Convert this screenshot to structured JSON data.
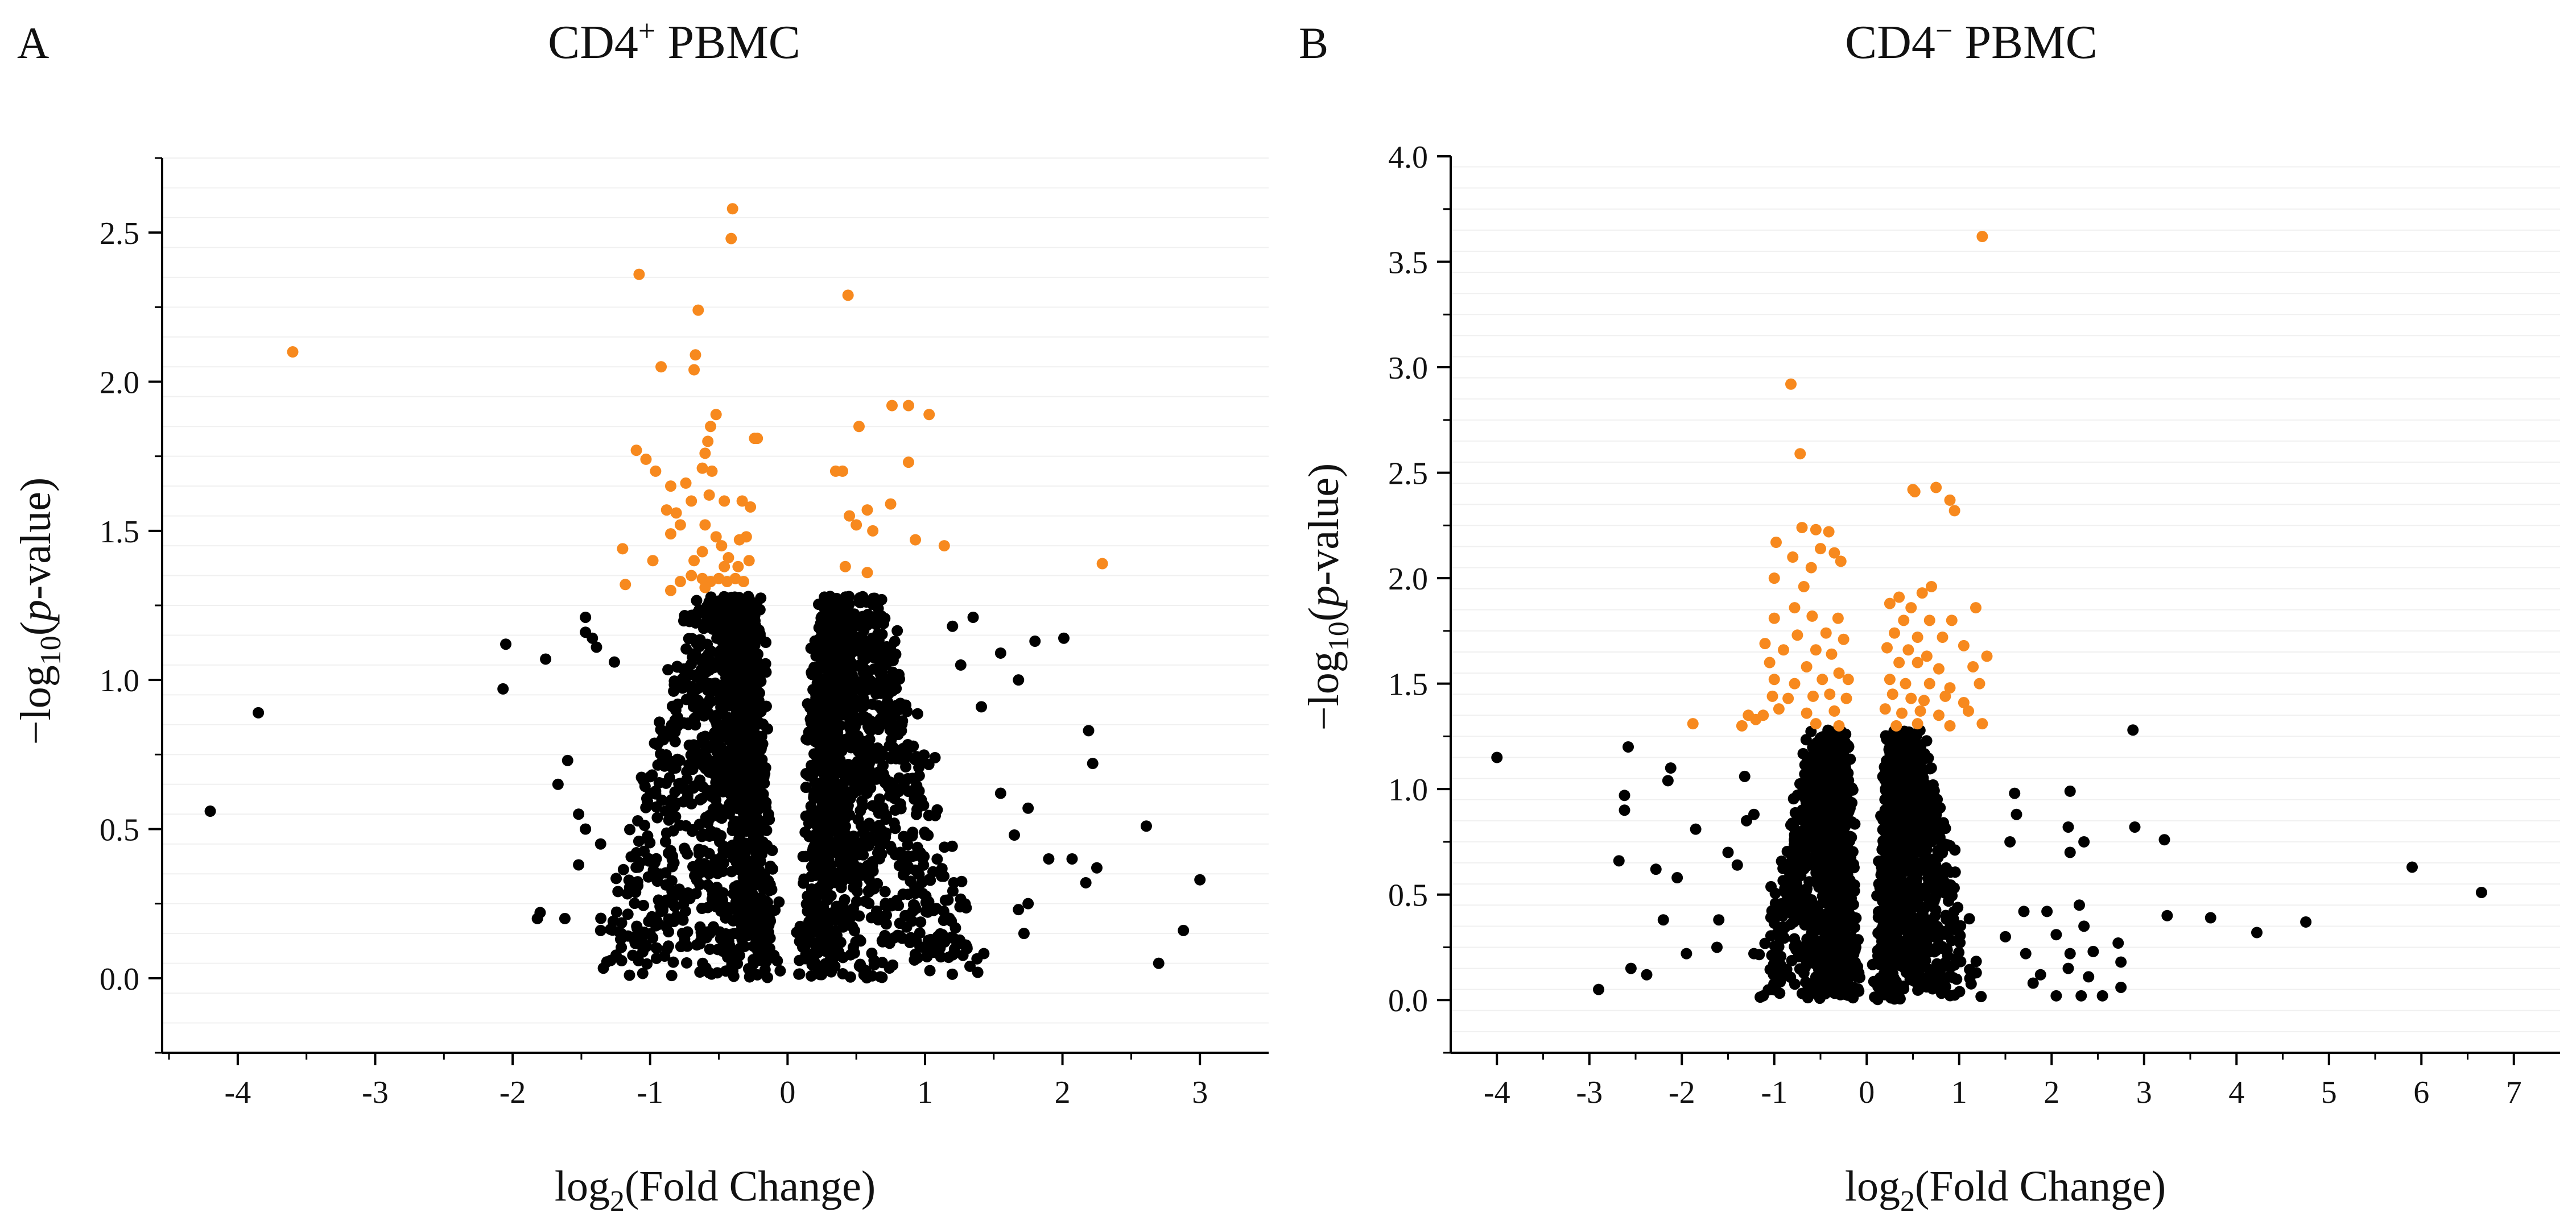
{
  "chart_data": [
    {
      "type": "scatter",
      "panel_letter": "A",
      "title_main": "CD4",
      "title_sup": "+",
      "title_tail": " PBMC",
      "xlabel_pre": "log",
      "xlabel_sub": "2",
      "xlabel_post": "(Fold Change)",
      "ylabel_pre": "−log",
      "ylabel_sub": "10",
      "ylabel_open": "(",
      "ylabel_ital": "p",
      "ylabel_post": "-value)",
      "xlim": [
        -4.55,
        3.5
      ],
      "ylim": [
        -0.25,
        2.75
      ],
      "xticks": [
        -4,
        -3,
        -2,
        -1,
        0,
        1,
        2,
        3
      ],
      "yticks": [
        0.0,
        0.5,
        1.0,
        1.5,
        2.0,
        2.5
      ],
      "ytick_labels": [
        "0.0",
        "0.5",
        "1.0",
        "1.5",
        "2.0",
        "2.5"
      ],
      "grid": false,
      "threshold_y": 1.3,
      "colors": {
        "significant": "#f7891e",
        "non_significant": "#000000"
      },
      "significant_points": [
        [
          -3.6,
          2.1
        ],
        [
          -0.4,
          2.58
        ],
        [
          -0.41,
          2.48
        ],
        [
          -1.08,
          2.36
        ],
        [
          0.44,
          2.29
        ],
        [
          -0.65,
          2.24
        ],
        [
          -0.67,
          2.09
        ],
        [
          -0.68,
          2.04
        ],
        [
          -0.92,
          2.05
        ],
        [
          0.76,
          1.92
        ],
        [
          0.88,
          1.92
        ],
        [
          1.03,
          1.89
        ],
        [
          -0.52,
          1.89
        ],
        [
          -0.56,
          1.85
        ],
        [
          -0.58,
          1.8
        ],
        [
          -0.6,
          1.76
        ],
        [
          -0.24,
          1.81
        ],
        [
          -0.22,
          1.81
        ],
        [
          0.52,
          1.85
        ],
        [
          -1.1,
          1.77
        ],
        [
          -1.03,
          1.74
        ],
        [
          -0.96,
          1.7
        ],
        [
          -0.62,
          1.71
        ],
        [
          -0.55,
          1.7
        ],
        [
          0.35,
          1.7
        ],
        [
          0.4,
          1.7
        ],
        [
          0.88,
          1.73
        ],
        [
          -0.85,
          1.65
        ],
        [
          -0.74,
          1.66
        ],
        [
          -0.57,
          1.62
        ],
        [
          -0.7,
          1.6
        ],
        [
          -0.46,
          1.6
        ],
        [
          -0.88,
          1.57
        ],
        [
          -0.81,
          1.56
        ],
        [
          -0.33,
          1.6
        ],
        [
          -0.27,
          1.58
        ],
        [
          0.75,
          1.59
        ],
        [
          0.58,
          1.57
        ],
        [
          -1.2,
          1.44
        ],
        [
          -0.85,
          1.49
        ],
        [
          -0.78,
          1.52
        ],
        [
          -0.6,
          1.52
        ],
        [
          -0.52,
          1.48
        ],
        [
          -0.48,
          1.45
        ],
        [
          -0.62,
          1.43
        ],
        [
          -0.35,
          1.47
        ],
        [
          -0.3,
          1.48
        ],
        [
          0.45,
          1.55
        ],
        [
          0.5,
          1.52
        ],
        [
          0.62,
          1.5
        ],
        [
          0.93,
          1.47
        ],
        [
          1.14,
          1.45
        ],
        [
          -0.98,
          1.4
        ],
        [
          -0.68,
          1.4
        ],
        [
          -0.43,
          1.41
        ],
        [
          -0.28,
          1.4
        ],
        [
          -0.7,
          1.35
        ],
        [
          -0.62,
          1.34
        ],
        [
          -0.56,
          1.33
        ],
        [
          -0.5,
          1.34
        ],
        [
          -0.44,
          1.33
        ],
        [
          -0.38,
          1.34
        ],
        [
          -0.32,
          1.33
        ],
        [
          -0.46,
          1.38
        ],
        [
          -0.36,
          1.38
        ],
        [
          -0.78,
          1.33
        ],
        [
          -1.18,
          1.32
        ],
        [
          0.42,
          1.38
        ],
        [
          0.58,
          1.36
        ],
        [
          2.29,
          1.39
        ],
        [
          -0.6,
          1.31
        ],
        [
          -0.85,
          1.3
        ]
      ],
      "outlier_points": [
        [
          -4.2,
          0.56
        ],
        [
          -3.85,
          0.89
        ],
        [
          -2.05,
          1.12
        ],
        [
          -2.07,
          0.97
        ],
        [
          -1.76,
          1.07
        ],
        [
          -1.6,
          0.73
        ],
        [
          -1.67,
          0.65
        ],
        [
          -1.52,
          0.55
        ],
        [
          -1.47,
          0.5
        ],
        [
          -1.52,
          0.38
        ],
        [
          -1.36,
          0.45
        ],
        [
          -1.8,
          0.22
        ],
        [
          -1.82,
          0.2
        ],
        [
          -1.62,
          0.2
        ],
        [
          -1.36,
          0.16
        ],
        [
          -1.15,
          0.01
        ],
        [
          -1.47,
          1.21
        ],
        [
          -1.47,
          1.16
        ],
        [
          -1.39,
          1.11
        ],
        [
          -1.26,
          1.06
        ],
        [
          -1.42,
          1.14
        ],
        [
          1.35,
          1.21
        ],
        [
          1.55,
          1.09
        ],
        [
          1.8,
          1.13
        ],
        [
          2.01,
          1.14
        ],
        [
          1.68,
          1.0
        ],
        [
          2.19,
          0.83
        ],
        [
          2.22,
          0.72
        ],
        [
          2.61,
          0.51
        ],
        [
          2.25,
          0.37
        ],
        [
          2.17,
          0.32
        ],
        [
          3.0,
          0.33
        ],
        [
          2.88,
          0.16
        ],
        [
          2.7,
          0.05
        ],
        [
          1.9,
          0.4
        ],
        [
          2.07,
          0.4
        ],
        [
          1.68,
          0.23
        ],
        [
          1.75,
          0.25
        ],
        [
          1.75,
          0.57
        ],
        [
          1.55,
          0.62
        ],
        [
          1.65,
          0.48
        ],
        [
          1.72,
          0.15
        ],
        [
          1.2,
          1.18
        ],
        [
          1.26,
          1.05
        ],
        [
          1.41,
          0.91
        ]
      ]
    },
    {
      "type": "scatter",
      "panel_letter": "B",
      "title_main": "CD4",
      "title_sup": "−",
      "title_tail": " PBMC",
      "xlabel_pre": "log",
      "xlabel_sub": "2",
      "xlabel_post": "(Fold Change)",
      "ylabel_pre": "−log",
      "ylabel_sub": "10",
      "ylabel_open": "(",
      "ylabel_ital": "p",
      "ylabel_post": "-value)",
      "xlim": [
        -4.5,
        7.5
      ],
      "ylim": [
        -0.25,
        4.0
      ],
      "xticks": [
        -4,
        -3,
        -2,
        -1,
        0,
        1,
        2,
        3,
        4,
        5,
        6,
        7
      ],
      "yticks": [
        0.0,
        0.5,
        1.0,
        1.5,
        2.0,
        2.5,
        3.0,
        3.5,
        4.0
      ],
      "ytick_labels": [
        "0.0",
        "0.5",
        "1.0",
        "1.5",
        "2.0",
        "2.5",
        "3.0",
        "3.5",
        "4.0"
      ],
      "grid": false,
      "threshold_y": 1.3,
      "colors": {
        "significant": "#f7891e",
        "non_significant": "#000000"
      },
      "significant_points": [
        [
          1.25,
          3.62
        ],
        [
          -0.82,
          2.92
        ],
        [
          -0.72,
          2.59
        ],
        [
          0.75,
          2.43
        ],
        [
          0.5,
          2.42
        ],
        [
          0.52,
          2.41
        ],
        [
          0.9,
          2.37
        ],
        [
          0.95,
          2.32
        ],
        [
          -0.7,
          2.24
        ],
        [
          -0.55,
          2.23
        ],
        [
          -0.41,
          2.22
        ],
        [
          -0.98,
          2.17
        ],
        [
          -0.5,
          2.14
        ],
        [
          -0.8,
          2.1
        ],
        [
          -0.35,
          2.12
        ],
        [
          -0.6,
          2.05
        ],
        [
          -0.28,
          2.08
        ],
        [
          -1.0,
          2.0
        ],
        [
          -0.68,
          1.96
        ],
        [
          0.7,
          1.96
        ],
        [
          0.6,
          1.93
        ],
        [
          0.35,
          1.91
        ],
        [
          0.25,
          1.88
        ],
        [
          0.48,
          1.86
        ],
        [
          1.18,
          1.86
        ],
        [
          -1.0,
          1.81
        ],
        [
          -0.78,
          1.86
        ],
        [
          -0.59,
          1.82
        ],
        [
          -0.31,
          1.81
        ],
        [
          0.68,
          1.8
        ],
        [
          0.4,
          1.8
        ],
        [
          0.92,
          1.8
        ],
        [
          -0.75,
          1.73
        ],
        [
          -0.25,
          1.71
        ],
        [
          -0.44,
          1.74
        ],
        [
          0.3,
          1.74
        ],
        [
          0.55,
          1.72
        ],
        [
          0.82,
          1.72
        ],
        [
          1.05,
          1.68
        ],
        [
          -1.1,
          1.69
        ],
        [
          -0.9,
          1.66
        ],
        [
          -0.55,
          1.66
        ],
        [
          -0.38,
          1.64
        ],
        [
          0.22,
          1.67
        ],
        [
          0.45,
          1.66
        ],
        [
          0.65,
          1.63
        ],
        [
          1.3,
          1.63
        ],
        [
          -1.05,
          1.6
        ],
        [
          -0.65,
          1.58
        ],
        [
          -0.3,
          1.55
        ],
        [
          0.35,
          1.6
        ],
        [
          0.55,
          1.6
        ],
        [
          0.78,
          1.57
        ],
        [
          1.15,
          1.58
        ],
        [
          -1.0,
          1.52
        ],
        [
          -0.78,
          1.5
        ],
        [
          -0.48,
          1.52
        ],
        [
          -0.2,
          1.52
        ],
        [
          0.25,
          1.52
        ],
        [
          0.42,
          1.5
        ],
        [
          0.68,
          1.5
        ],
        [
          0.9,
          1.48
        ],
        [
          1.22,
          1.5
        ],
        [
          -1.02,
          1.44
        ],
        [
          -0.85,
          1.43
        ],
        [
          -0.58,
          1.44
        ],
        [
          -0.4,
          1.45
        ],
        [
          -0.22,
          1.43
        ],
        [
          0.28,
          1.45
        ],
        [
          0.48,
          1.43
        ],
        [
          0.62,
          1.42
        ],
        [
          0.85,
          1.44
        ],
        [
          1.05,
          1.41
        ],
        [
          -0.95,
          1.38
        ],
        [
          -0.65,
          1.36
        ],
        [
          -0.35,
          1.37
        ],
        [
          0.2,
          1.38
        ],
        [
          0.38,
          1.36
        ],
        [
          0.58,
          1.37
        ],
        [
          0.78,
          1.35
        ],
        [
          1.1,
          1.37
        ],
        [
          -1.35,
          1.3
        ],
        [
          -1.2,
          1.33
        ],
        [
          -1.12,
          1.35
        ],
        [
          -1.28,
          1.35
        ],
        [
          -1.88,
          1.31
        ],
        [
          -0.55,
          1.31
        ],
        [
          -0.3,
          1.3
        ],
        [
          0.32,
          1.3
        ],
        [
          0.55,
          1.31
        ],
        [
          0.9,
          1.3
        ],
        [
          1.25,
          1.31
        ]
      ],
      "outlier_points": [
        [
          -4.0,
          1.15
        ],
        [
          -2.9,
          0.05
        ],
        [
          -2.68,
          0.66
        ],
        [
          -2.58,
          1.2
        ],
        [
          -2.62,
          0.97
        ],
        [
          -2.62,
          0.9
        ],
        [
          -2.55,
          0.15
        ],
        [
          -2.38,
          0.12
        ],
        [
          -2.12,
          1.1
        ],
        [
          -2.28,
          0.62
        ],
        [
          -2.2,
          0.38
        ],
        [
          -2.05,
          0.58
        ],
        [
          -1.95,
          0.22
        ],
        [
          -1.85,
          0.81
        ],
        [
          -2.15,
          1.04
        ],
        [
          -1.6,
          0.38
        ],
        [
          -1.5,
          0.7
        ],
        [
          -1.4,
          0.64
        ],
        [
          -1.3,
          0.85
        ],
        [
          -1.22,
          0.88
        ],
        [
          -1.22,
          0.22
        ],
        [
          -1.12,
          0.02
        ],
        [
          -1.32,
          1.06
        ],
        [
          -1.62,
          0.25
        ],
        [
          2.88,
          1.28
        ],
        [
          2.9,
          0.82
        ],
        [
          3.22,
          0.76
        ],
        [
          3.25,
          0.4
        ],
        [
          3.72,
          0.39
        ],
        [
          4.22,
          0.32
        ],
        [
          4.75,
          0.37
        ],
        [
          5.9,
          0.63
        ],
        [
          6.65,
          0.51
        ],
        [
          2.72,
          0.27
        ],
        [
          2.75,
          0.18
        ],
        [
          2.75,
          0.06
        ],
        [
          2.45,
          0.23
        ],
        [
          2.4,
          0.11
        ],
        [
          2.35,
          0.35
        ],
        [
          2.32,
          0.02
        ],
        [
          2.55,
          0.02
        ],
        [
          1.95,
          0.42
        ],
        [
          2.05,
          0.31
        ],
        [
          2.05,
          0.02
        ],
        [
          2.18,
          0.82
        ],
        [
          2.2,
          0.7
        ],
        [
          1.88,
          0.12
        ],
        [
          2.18,
          0.15
        ],
        [
          2.2,
          0.22
        ],
        [
          2.3,
          0.45
        ],
        [
          1.55,
          0.75
        ],
        [
          1.7,
          0.42
        ],
        [
          1.72,
          0.22
        ],
        [
          1.8,
          0.08
        ],
        [
          1.6,
          0.98
        ],
        [
          1.62,
          0.88
        ],
        [
          1.5,
          0.3
        ],
        [
          2.2,
          0.99
        ],
        [
          2.35,
          0.75
        ]
      ]
    }
  ]
}
